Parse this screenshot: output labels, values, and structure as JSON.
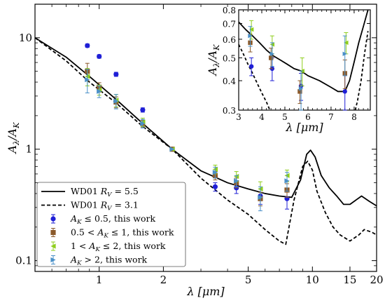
{
  "chart_data": [
    {
      "type": "line",
      "xlabel": "λ [μm]",
      "ylabel": "A_λ/A_K",
      "x_scale": "log",
      "y_scale": "log",
      "xlim": [
        0.5,
        20
      ],
      "ylim": [
        0.08,
        20
      ],
      "x_ticks": [
        1,
        2,
        5,
        10,
        15,
        20
      ],
      "x_tick_labels": [
        "1",
        "2",
        "5",
        "10",
        "15",
        "20"
      ],
      "y_ticks": [
        0.1,
        1,
        10
      ],
      "y_tick_labels": [
        "0.1",
        "1",
        "10"
      ],
      "legend_position": "lower-left",
      "series": [
        {
          "name": "WD01 R_V = 5.5",
          "kind": "line",
          "style": "solid",
          "color": "#000000",
          "x": [
            0.5,
            0.7,
            0.9,
            1.2,
            1.6,
            2.2,
            3.0,
            4.0,
            5.0,
            6.0,
            7.0,
            8.0,
            8.8,
            9.4,
            9.8,
            10.3,
            11.0,
            12.0,
            13.0,
            14.0,
            15.0,
            17.0,
            18.5,
            20.0
          ],
          "y": [
            10.0,
            6.7,
            4.5,
            2.8,
            1.7,
            1.0,
            0.64,
            0.5,
            0.44,
            0.4,
            0.38,
            0.37,
            0.53,
            0.9,
            0.98,
            0.85,
            0.58,
            0.45,
            0.38,
            0.32,
            0.32,
            0.38,
            0.34,
            0.31
          ]
        },
        {
          "name": "WD01 R_V = 3.1",
          "kind": "line",
          "style": "dashed",
          "color": "#000000",
          "x": [
            0.5,
            0.7,
            0.9,
            1.2,
            1.6,
            2.2,
            3.0,
            4.0,
            5.0,
            6.0,
            7.0,
            7.5,
            8.2,
            9.0,
            9.5,
            10.0,
            10.5,
            11.5,
            12.5,
            13.5,
            15.0,
            16.5,
            17.5,
            19.0,
            20.0
          ],
          "y": [
            10.0,
            6.2,
            4.0,
            2.6,
            1.6,
            1.0,
            0.55,
            0.35,
            0.26,
            0.19,
            0.15,
            0.14,
            0.35,
            0.7,
            0.78,
            0.65,
            0.42,
            0.27,
            0.2,
            0.17,
            0.15,
            0.17,
            0.19,
            0.18,
            0.17
          ]
        },
        {
          "name": "A_K ≤ 0.5, this work",
          "kind": "points",
          "marker": "circle",
          "color": "#1f1fd6",
          "x": [
            0.88,
            1.0,
            1.2,
            1.6,
            2.2,
            3.5,
            4.4,
            5.7,
            7.6
          ],
          "y": [
            8.5,
            6.8,
            4.7,
            2.25,
            1.0,
            0.46,
            0.45,
            0.38,
            0.36
          ],
          "err": [
            0.3,
            0.25,
            0.2,
            0.1,
            0.0,
            0.04,
            0.05,
            0.06,
            0.07
          ]
        },
        {
          "name": "0.5 < A_K ≤ 1, this work",
          "kind": "points",
          "marker": "square",
          "color": "#8b5a2b",
          "x": [
            0.88,
            1.0,
            1.2,
            1.6,
            2.2,
            3.5,
            4.4,
            5.7,
            7.6
          ],
          "y": [
            5.0,
            3.6,
            2.65,
            1.7,
            1.0,
            0.58,
            0.5,
            0.36,
            0.43
          ],
          "err": [
            0.9,
            0.35,
            0.3,
            0.12,
            0.0,
            0.05,
            0.05,
            0.05,
            0.06
          ]
        },
        {
          "name": "1 < A_K ≤ 2, this work",
          "kind": "points",
          "marker": "triangle-left",
          "color": "#8fce1c",
          "x": [
            0.88,
            1.0,
            1.2,
            1.6,
            2.2,
            3.5,
            4.4,
            5.7,
            7.6
          ],
          "y": [
            4.5,
            3.4,
            2.75,
            1.75,
            1.0,
            0.66,
            0.57,
            0.44,
            0.58
          ],
          "err": [
            0.8,
            0.35,
            0.35,
            0.15,
            0.0,
            0.06,
            0.06,
            0.07,
            0.07
          ]
        },
        {
          "name": "A_K > 2, this work",
          "kind": "points",
          "marker": "triangle-right",
          "color": "#4a90c8",
          "x": [
            0.88,
            1.0,
            1.2,
            1.6,
            2.2,
            3.5,
            4.4,
            5.7,
            7.6
          ],
          "y": [
            4.2,
            3.3,
            2.7,
            1.7,
            1.0,
            0.62,
            0.52,
            0.37,
            0.52
          ],
          "err": [
            1.0,
            0.4,
            0.4,
            0.15,
            0.0,
            0.07,
            0.06,
            0.09,
            0.1
          ]
        }
      ],
      "legend": {
        "entries": [
          {
            "prefix": "WD01 ",
            "math": "R",
            "sub": "V",
            "suffix": " = 5.5",
            "style": "solid"
          },
          {
            "prefix": "WD01 ",
            "math": "R",
            "sub": "V",
            "suffix": " = 3.1",
            "style": "dashed"
          },
          {
            "text": "A_K ≤ 0.5, this work",
            "marker": "circle",
            "color": "#1f1fd6"
          },
          {
            "text": "0.5 < A_K ≤ 1, this work",
            "marker": "square",
            "color": "#8b5a2b"
          },
          {
            "text": "1 < A_K ≤ 2, this work",
            "marker": "triangle-left",
            "color": "#8fce1c"
          },
          {
            "text": "A_K > 2, this work",
            "marker": "triangle-right",
            "color": "#4a90c8"
          }
        ]
      }
    },
    {
      "type": "line",
      "xlabel": "λ [μm]",
      "ylabel": "A_λ/A_K",
      "x_scale": "linear",
      "y_scale": "log",
      "xlim": [
        3,
        8.7
      ],
      "ylim": [
        0.3,
        0.8
      ],
      "x_ticks": [
        3,
        4,
        5,
        6,
        7,
        8
      ],
      "x_tick_labels": [
        "3",
        "4",
        "5",
        "6",
        "7",
        "8"
      ],
      "y_ticks": [
        0.3,
        0.4,
        0.5,
        0.6,
        0.7,
        0.8
      ],
      "y_tick_labels": [
        "0.3",
        "0.4",
        "0.5",
        "0.6",
        "0.7",
        "0.8"
      ],
      "series": [
        {
          "name": "WD01 R_V = 5.5",
          "kind": "line",
          "style": "solid",
          "x": [
            3.0,
            3.3,
            3.6,
            3.9,
            4.2,
            4.5,
            4.8,
            5.1,
            5.4,
            5.7,
            6.0,
            6.5,
            7.0,
            7.3,
            7.6,
            7.8,
            8.0,
            8.2,
            8.4,
            8.6
          ],
          "y": [
            0.71,
            0.66,
            0.62,
            0.58,
            0.54,
            0.51,
            0.49,
            0.47,
            0.45,
            0.44,
            0.42,
            0.4,
            0.375,
            0.36,
            0.36,
            0.4,
            0.48,
            0.58,
            0.68,
            0.8
          ]
        },
        {
          "name": "WD01 R_V = 3.1",
          "kind": "line",
          "style": "dashed",
          "x": [
            3.0,
            3.2,
            3.4,
            3.6,
            3.8,
            4.0,
            4.2,
            4.35
          ],
          "y": [
            0.57,
            0.52,
            0.47,
            0.43,
            0.39,
            0.355,
            0.325,
            0.3
          ]
        },
        {
          "name": "WD01 R_V = 3.1 (right)",
          "kind": "line",
          "style": "dashed",
          "x": [
            8.05,
            8.15,
            8.3,
            8.45,
            8.6
          ],
          "y": [
            0.3,
            0.33,
            0.4,
            0.52,
            0.65
          ]
        },
        {
          "name": "A_K ≤ 0.5",
          "kind": "points",
          "marker": "circle",
          "color": "#1f1fd6",
          "x": [
            3.55,
            4.45,
            5.7,
            7.6
          ],
          "y": [
            0.46,
            0.45,
            0.38,
            0.36
          ],
          "err": [
            0.04,
            0.05,
            0.05,
            0.06
          ]
        },
        {
          "name": "0.5 < A_K ≤ 1",
          "kind": "points",
          "marker": "square",
          "color": "#8b5a2b",
          "x": [
            3.5,
            4.4,
            5.65,
            7.6
          ],
          "y": [
            0.58,
            0.5,
            0.36,
            0.43
          ],
          "err": [
            0.05,
            0.05,
            0.04,
            0.06
          ]
        },
        {
          "name": "1 < A_K ≤ 2",
          "kind": "points",
          "marker": "triangle-left",
          "color": "#8fce1c",
          "x": [
            3.55,
            4.45,
            5.75,
            7.65
          ],
          "y": [
            0.66,
            0.57,
            0.44,
            0.58
          ],
          "err": [
            0.06,
            0.05,
            0.06,
            0.06
          ]
        },
        {
          "name": "A_K > 2",
          "kind": "points",
          "marker": "triangle-right",
          "color": "#4a90c8",
          "x": [
            3.5,
            4.45,
            5.7,
            7.6
          ],
          "y": [
            0.62,
            0.52,
            0.37,
            0.52
          ],
          "err": [
            0.06,
            0.06,
            0.07,
            0.1
          ]
        }
      ]
    }
  ]
}
